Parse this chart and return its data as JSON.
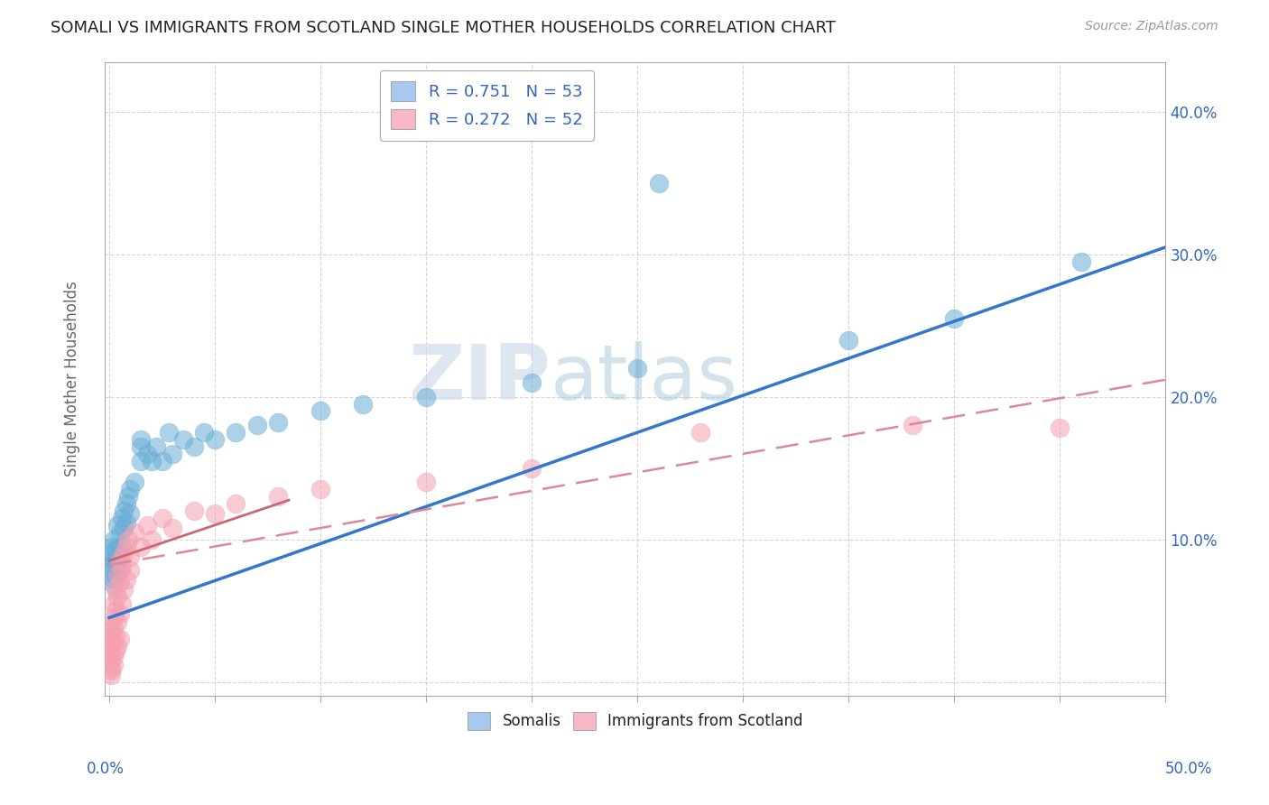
{
  "title": "SOMALI VS IMMIGRANTS FROM SCOTLAND SINGLE MOTHER HOUSEHOLDS CORRELATION CHART",
  "source": "Source: ZipAtlas.com",
  "ylabel": "Single Mother Households",
  "ytick_vals": [
    0.0,
    0.1,
    0.2,
    0.3,
    0.4
  ],
  "ytick_labels": [
    "",
    "10.0%",
    "20.0%",
    "30.0%",
    "40.0%"
  ],
  "xtick_vals": [
    0.0,
    0.05,
    0.1,
    0.15,
    0.2,
    0.25,
    0.3,
    0.35,
    0.4,
    0.45,
    0.5
  ],
  "xlim": [
    -0.002,
    0.5
  ],
  "ylim": [
    -0.01,
    0.435
  ],
  "legend_label1": "R = 0.751   N = 53",
  "legend_label2": "R = 0.272   N = 52",
  "legend_color1": "#a8c8f0",
  "legend_color2": "#f8b8c8",
  "somali_color": "#6aaed6",
  "scotland_color": "#f4a0b0",
  "trendline1_color": "#3377cc",
  "trendline2_color": "#cc6677",
  "trendline2_dashed_color": "#dd8899",
  "watermark_zip": "ZIP",
  "watermark_atlas": "atlas",
  "title_fontsize": 13,
  "source_fontsize": 10,
  "somalis_points": [
    [
      0.001,
      0.09
    ],
    [
      0.001,
      0.082
    ],
    [
      0.001,
      0.078
    ],
    [
      0.001,
      0.095
    ],
    [
      0.002,
      0.085
    ],
    [
      0.002,
      0.072
    ],
    [
      0.002,
      0.1
    ],
    [
      0.002,
      0.068
    ],
    [
      0.003,
      0.088
    ],
    [
      0.003,
      0.092
    ],
    [
      0.003,
      0.08
    ],
    [
      0.003,
      0.075
    ],
    [
      0.004,
      0.095
    ],
    [
      0.004,
      0.085
    ],
    [
      0.004,
      0.11
    ],
    [
      0.005,
      0.09
    ],
    [
      0.005,
      0.105
    ],
    [
      0.005,
      0.078
    ],
    [
      0.006,
      0.115
    ],
    [
      0.006,
      0.095
    ],
    [
      0.007,
      0.12
    ],
    [
      0.007,
      0.108
    ],
    [
      0.008,
      0.125
    ],
    [
      0.008,
      0.112
    ],
    [
      0.009,
      0.13
    ],
    [
      0.01,
      0.118
    ],
    [
      0.01,
      0.135
    ],
    [
      0.012,
      0.14
    ],
    [
      0.015,
      0.155
    ],
    [
      0.015,
      0.165
    ],
    [
      0.015,
      0.17
    ],
    [
      0.018,
      0.16
    ],
    [
      0.02,
      0.155
    ],
    [
      0.022,
      0.165
    ],
    [
      0.025,
      0.155
    ],
    [
      0.028,
      0.175
    ],
    [
      0.03,
      0.16
    ],
    [
      0.035,
      0.17
    ],
    [
      0.04,
      0.165
    ],
    [
      0.045,
      0.175
    ],
    [
      0.05,
      0.17
    ],
    [
      0.06,
      0.175
    ],
    [
      0.07,
      0.18
    ],
    [
      0.08,
      0.182
    ],
    [
      0.1,
      0.19
    ],
    [
      0.12,
      0.195
    ],
    [
      0.15,
      0.2
    ],
    [
      0.2,
      0.21
    ],
    [
      0.25,
      0.22
    ],
    [
      0.26,
      0.35
    ],
    [
      0.35,
      0.24
    ],
    [
      0.4,
      0.255
    ],
    [
      0.46,
      0.295
    ]
  ],
  "scotland_points": [
    [
      0.001,
      0.02
    ],
    [
      0.001,
      0.01
    ],
    [
      0.001,
      0.03
    ],
    [
      0.001,
      0.005
    ],
    [
      0.001,
      0.04
    ],
    [
      0.001,
      0.015
    ],
    [
      0.001,
      0.025
    ],
    [
      0.001,
      0.035
    ],
    [
      0.001,
      0.008
    ],
    [
      0.002,
      0.045
    ],
    [
      0.002,
      0.012
    ],
    [
      0.002,
      0.028
    ],
    [
      0.002,
      0.055
    ],
    [
      0.002,
      0.018
    ],
    [
      0.002,
      0.038
    ],
    [
      0.003,
      0.05
    ],
    [
      0.003,
      0.022
    ],
    [
      0.003,
      0.065
    ],
    [
      0.003,
      0.032
    ],
    [
      0.004,
      0.06
    ],
    [
      0.004,
      0.042
    ],
    [
      0.004,
      0.075
    ],
    [
      0.004,
      0.025
    ],
    [
      0.005,
      0.07
    ],
    [
      0.005,
      0.048
    ],
    [
      0.005,
      0.085
    ],
    [
      0.005,
      0.03
    ],
    [
      0.006,
      0.08
    ],
    [
      0.006,
      0.055
    ],
    [
      0.007,
      0.09
    ],
    [
      0.007,
      0.065
    ],
    [
      0.008,
      0.095
    ],
    [
      0.008,
      0.072
    ],
    [
      0.009,
      0.1
    ],
    [
      0.01,
      0.078
    ],
    [
      0.01,
      0.088
    ],
    [
      0.012,
      0.105
    ],
    [
      0.015,
      0.095
    ],
    [
      0.018,
      0.11
    ],
    [
      0.02,
      0.1
    ],
    [
      0.025,
      0.115
    ],
    [
      0.03,
      0.108
    ],
    [
      0.04,
      0.12
    ],
    [
      0.05,
      0.118
    ],
    [
      0.06,
      0.125
    ],
    [
      0.08,
      0.13
    ],
    [
      0.1,
      0.135
    ],
    [
      0.15,
      0.14
    ],
    [
      0.2,
      0.15
    ],
    [
      0.28,
      0.175
    ],
    [
      0.38,
      0.18
    ],
    [
      0.45,
      0.178
    ]
  ]
}
